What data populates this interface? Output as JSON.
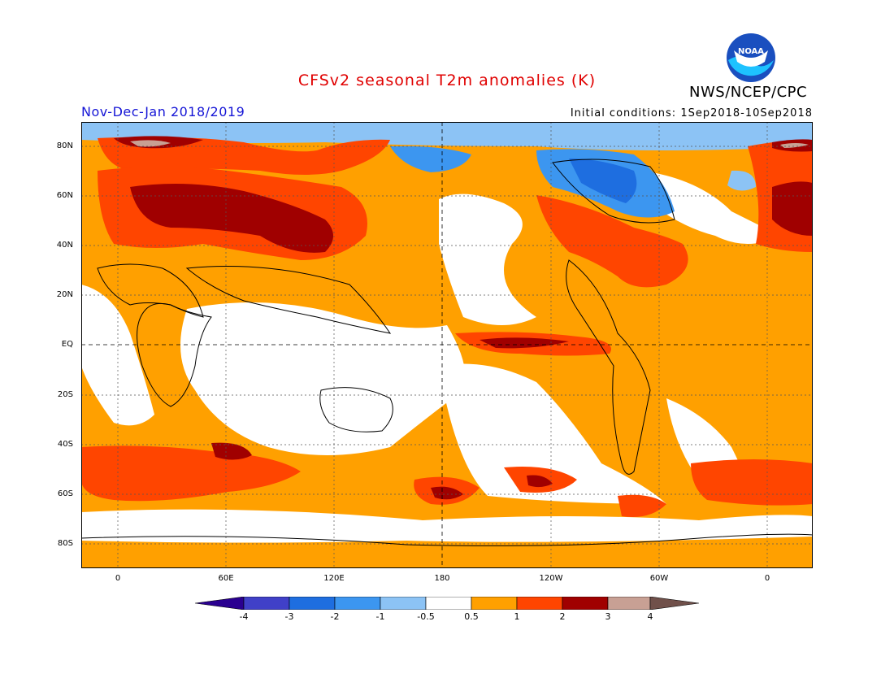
{
  "header": {
    "title": "CFSv2 seasonal T2m anomalies (K)",
    "agency": "NWS/NCEP/CPC",
    "season": "Nov-Dec-Jan 2018/2019",
    "initial_conditions": "Initial conditions: 1Sep2018-10Sep2018",
    "logo_text": "NOAA"
  },
  "map": {
    "lat_labels": [
      "80N",
      "60N",
      "40N",
      "20N",
      "EQ",
      "20S",
      "40S",
      "60S",
      "80S"
    ],
    "lon_labels": [
      "0",
      "60E",
      "120E",
      "180",
      "120W",
      "60W",
      "0"
    ]
  },
  "colorbar": {
    "labels": [
      "-4",
      "-3",
      "-2",
      "-1",
      "-0.5",
      "0.5",
      "1",
      "2",
      "3",
      "4"
    ],
    "colors": [
      "#2a0090",
      "#4040c8",
      "#1e6ee0",
      "#3c96f0",
      "#8cc3f5",
      "#ffffff",
      "#ffa000",
      "#ff4500",
      "#a00000",
      "#c8a094",
      "#70504a"
    ]
  }
}
